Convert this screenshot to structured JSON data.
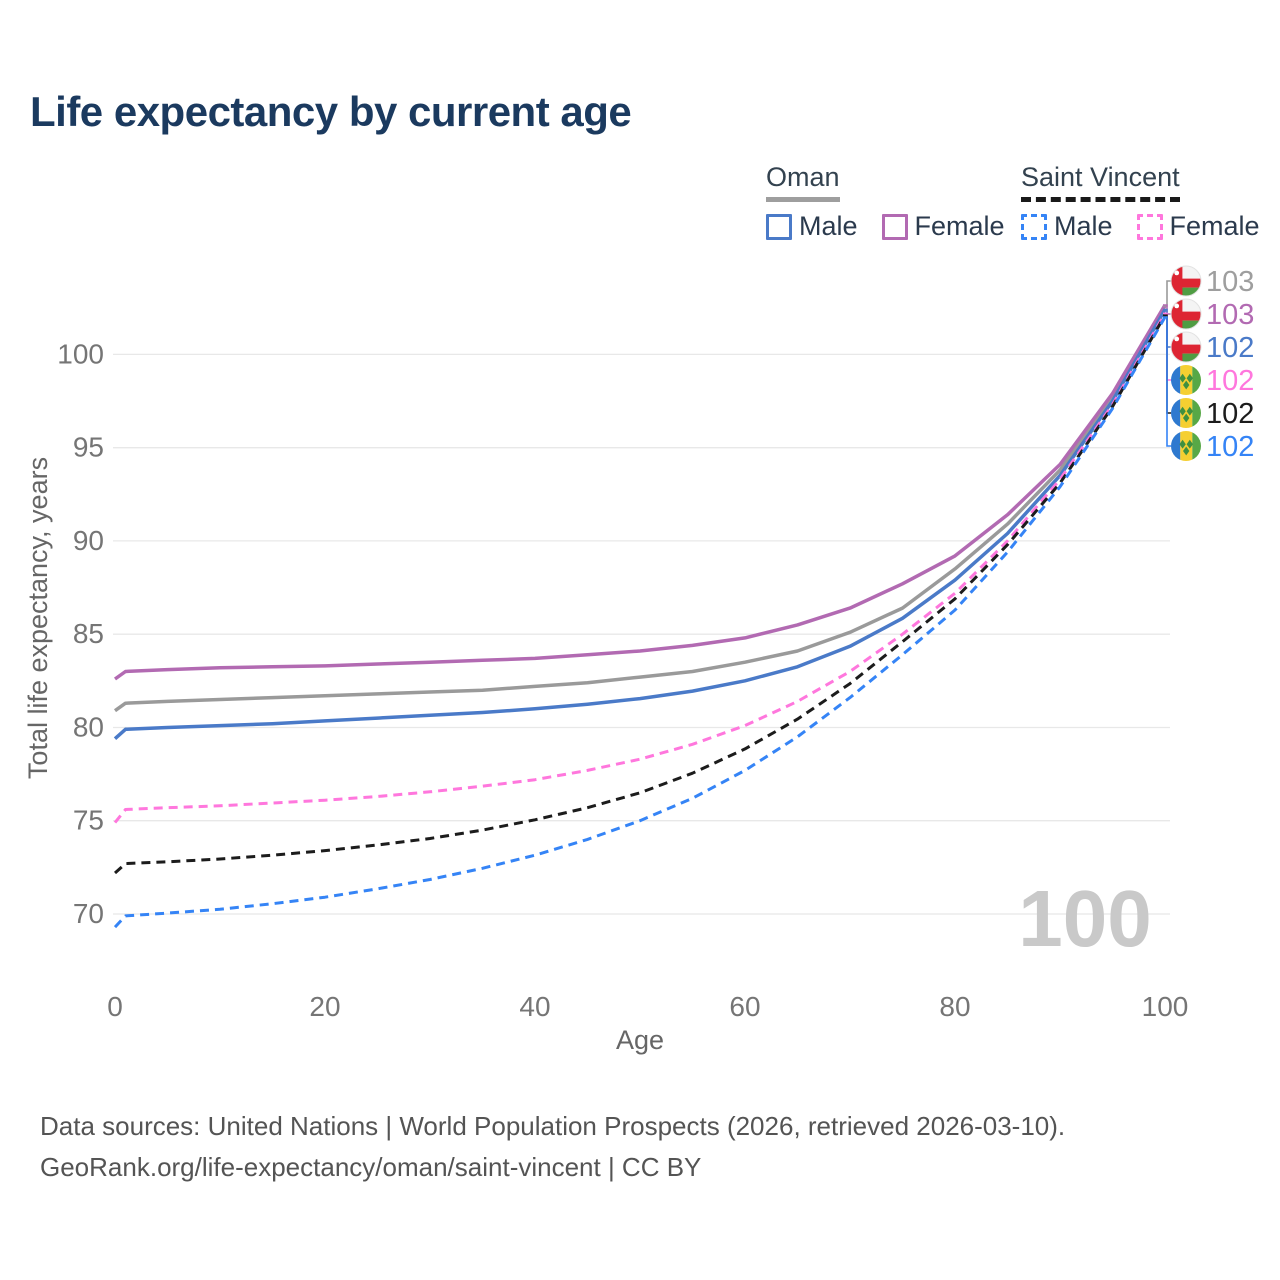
{
  "title": "Life expectancy by current age",
  "legend": {
    "groups": [
      {
        "title": "Oman",
        "line_style": "solid",
        "underline_color": "#9e9e9e",
        "items": [
          {
            "label": "Male",
            "color": "#4a7ac8"
          },
          {
            "label": "Female",
            "color": "#b26ab2"
          }
        ]
      },
      {
        "title": "Saint Vincent",
        "line_style": "dashed",
        "underline_color": "#1a1a1a",
        "items": [
          {
            "label": "Male",
            "color": "#3584f6"
          },
          {
            "label": "Female",
            "color": "#ff77dd"
          }
        ]
      }
    ]
  },
  "axes": {
    "x": {
      "label": "Age",
      "ticks": [
        0,
        20,
        40,
        60,
        80,
        100
      ]
    },
    "y": {
      "label": "Total life expectancy, years",
      "ticks": [
        70,
        75,
        80,
        85,
        90,
        95,
        100
      ]
    }
  },
  "watermark": "100",
  "footer": {
    "line1": "Data sources: United Nations | World Population Prospects (2026, retrieved 2026-03-10).",
    "line2": "GeoRank.org/life-expectancy/oman/saint-vincent | CC BY"
  },
  "chart_data": {
    "type": "line",
    "title": "Life expectancy by current age",
    "xlabel": "Age",
    "ylabel": "Total life expectancy, years",
    "xlim": [
      0,
      100
    ],
    "ylim": [
      68.5,
      103.5
    ],
    "grid": "horizontal",
    "legend_position": "top-right",
    "x": [
      0,
      1,
      5,
      10,
      15,
      20,
      25,
      30,
      35,
      40,
      45,
      50,
      55,
      60,
      65,
      70,
      75,
      80,
      85,
      90,
      95,
      100
    ],
    "series": [
      {
        "id": "oman-both",
        "name": "Oman — both sexes",
        "country": "Oman",
        "sex": "both",
        "color": "#9a9a9a",
        "dash": false,
        "flag": "oman",
        "end_label": "103",
        "end_label_color": "#9e9e9e",
        "values": [
          80.9,
          81.3,
          81.4,
          81.5,
          81.6,
          81.7,
          81.8,
          81.9,
          82.0,
          82.2,
          82.4,
          82.7,
          83.0,
          83.5,
          84.1,
          85.1,
          86.4,
          88.5,
          90.9,
          93.8,
          97.7,
          102.6
        ]
      },
      {
        "id": "oman-female",
        "name": "Oman — female",
        "country": "Oman",
        "sex": "female",
        "color": "#b26ab2",
        "dash": false,
        "flag": "oman",
        "end_label": "103",
        "end_label_color": "#b26ab2",
        "values": [
          82.6,
          83.0,
          83.1,
          83.2,
          83.25,
          83.3,
          83.4,
          83.5,
          83.6,
          83.7,
          83.9,
          84.1,
          84.4,
          84.8,
          85.5,
          86.4,
          87.7,
          89.2,
          91.4,
          94.1,
          97.9,
          102.65
        ]
      },
      {
        "id": "oman-male",
        "name": "Oman — male",
        "country": "Oman",
        "sex": "male",
        "color": "#4a7ac8",
        "dash": false,
        "flag": "oman",
        "end_label": "102",
        "end_label_color": "#4a7ac8",
        "values": [
          79.4,
          79.9,
          80.0,
          80.1,
          80.2,
          80.35,
          80.5,
          80.65,
          80.8,
          81.0,
          81.25,
          81.55,
          81.95,
          82.5,
          83.25,
          84.35,
          85.85,
          87.9,
          90.4,
          93.5,
          97.5,
          102.4
        ]
      },
      {
        "id": "saint-vincent-female",
        "name": "Saint Vincent — female",
        "country": "Saint Vincent",
        "sex": "female",
        "color": "#ff77dd",
        "dash": true,
        "flag": "saint-vincent",
        "end_label": "102",
        "end_label_color": "#ff77dd",
        "values": [
          74.9,
          75.6,
          75.7,
          75.8,
          75.95,
          76.1,
          76.3,
          76.55,
          76.85,
          77.2,
          77.7,
          78.3,
          79.1,
          80.1,
          81.4,
          83.0,
          85.0,
          87.2,
          90.0,
          93.3,
          97.3,
          102.2
        ]
      },
      {
        "id": "saint-vincent-both",
        "name": "Saint Vincent — both sexes",
        "country": "Saint Vincent",
        "sex": "both",
        "color": "#1c1c1c",
        "dash": true,
        "flag": "saint-vincent",
        "end_label": "102",
        "end_label_color": "#1c1c1c",
        "values": [
          72.2,
          72.7,
          72.8,
          72.95,
          73.15,
          73.4,
          73.7,
          74.05,
          74.5,
          75.05,
          75.7,
          76.5,
          77.55,
          78.85,
          80.45,
          82.35,
          84.6,
          86.9,
          89.8,
          93.1,
          97.2,
          102.1
        ]
      },
      {
        "id": "saint-vincent-male",
        "name": "Saint Vincent — male",
        "country": "Saint Vincent",
        "sex": "male",
        "color": "#3584f6",
        "dash": true,
        "flag": "saint-vincent",
        "end_label": "102",
        "end_label_color": "#3584f6",
        "values": [
          69.3,
          69.9,
          70.05,
          70.25,
          70.55,
          70.9,
          71.35,
          71.85,
          72.45,
          73.15,
          74.0,
          75.0,
          76.2,
          77.7,
          79.5,
          81.6,
          83.9,
          86.3,
          89.4,
          92.9,
          97.1,
          102.0
        ]
      }
    ]
  }
}
